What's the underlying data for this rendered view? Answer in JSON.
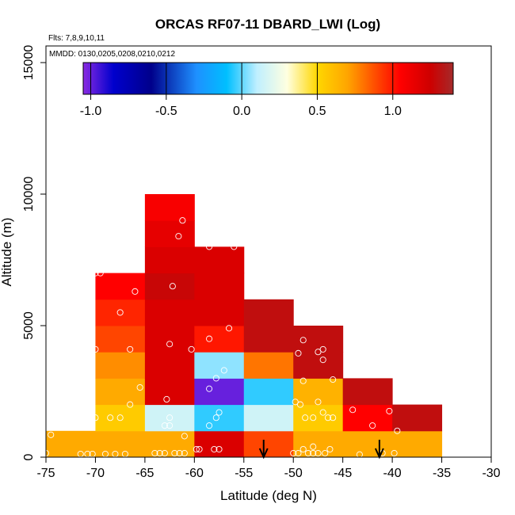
{
  "chart_data": {
    "type": "heatmap",
    "title": "ORCAS RF07-11 DBARD_LWI (Log)",
    "flights_note": "Flts: 7,8,9,10,11",
    "dates_note": "MMDD: 0130,0205,0208,0210,0212",
    "xlabel": "Latitude (deg N)",
    "ylabel": "Altitude (m)",
    "xlim": [
      -75,
      -30
    ],
    "ylim": [
      0,
      15000
    ],
    "x_ticks": [
      -75,
      -70,
      -65,
      -60,
      -55,
      -50,
      -45,
      -40,
      -35,
      -30
    ],
    "x_tick_labels": [
      "-75",
      "-70",
      "-65",
      "-60",
      "-55",
      "-50",
      "-45",
      "-40",
      "-35",
      "-30"
    ],
    "y_ticks": [
      0,
      5000,
      10000,
      15000
    ],
    "y_tick_labels": [
      "0",
      "5000",
      "10000",
      "15000"
    ],
    "colorbar": {
      "range": [
        -1.05,
        1.4
      ],
      "ticks": [
        -1.0,
        -0.5,
        0.0,
        0.5,
        1.0
      ],
      "tick_labels": [
        "-1.0",
        "-0.5",
        "0.0",
        "0.5",
        "1.0"
      ],
      "stops": [
        {
          "v": -1.05,
          "c": "#8a2be2"
        },
        {
          "v": -0.85,
          "c": "#0000cd"
        },
        {
          "v": -0.6,
          "c": "#00008b"
        },
        {
          "v": -0.3,
          "c": "#1e90ff"
        },
        {
          "v": -0.1,
          "c": "#00bfff"
        },
        {
          "v": 0.1,
          "c": "#bfefff"
        },
        {
          "v": 0.3,
          "c": "#ffffe0"
        },
        {
          "v": 0.5,
          "c": "#ffd700"
        },
        {
          "v": 0.7,
          "c": "#ffa500"
        },
        {
          "v": 0.9,
          "c": "#ff4500"
        },
        {
          "v": 1.05,
          "c": "#ff0000"
        },
        {
          "v": 1.25,
          "c": "#cd0000"
        },
        {
          "v": 1.4,
          "c": "#a52a2a"
        }
      ]
    },
    "cells": [
      {
        "lat": [
          -75,
          -70
        ],
        "alt": [
          0,
          1000
        ],
        "value": 0.68
      },
      {
        "lat": [
          -70,
          -65
        ],
        "alt": [
          0,
          1000
        ],
        "value": 0.68
      },
      {
        "lat": [
          -70,
          -65
        ],
        "alt": [
          1000,
          2000
        ],
        "value": 0.55
      },
      {
        "lat": [
          -70,
          -65
        ],
        "alt": [
          2000,
          3000
        ],
        "value": 0.68
      },
      {
        "lat": [
          -70,
          -65
        ],
        "alt": [
          3000,
          4000
        ],
        "value": 0.75
      },
      {
        "lat": [
          -70,
          -65
        ],
        "alt": [
          4000,
          5000
        ],
        "value": 0.9
      },
      {
        "lat": [
          -70,
          -65
        ],
        "alt": [
          5000,
          6000
        ],
        "value": 0.97
      },
      {
        "lat": [
          -70,
          -65
        ],
        "alt": [
          6000,
          7000
        ],
        "value": 1.05
      },
      {
        "lat": [
          -65,
          -60
        ],
        "alt": [
          0,
          1000
        ],
        "value": 0.68
      },
      {
        "lat": [
          -65,
          -60
        ],
        "alt": [
          1000,
          2000
        ],
        "value": 0.15
      },
      {
        "lat": [
          -65,
          -60
        ],
        "alt": [
          2000,
          3000
        ],
        "value": 1.2
      },
      {
        "lat": [
          -65,
          -60
        ],
        "alt": [
          3000,
          4000
        ],
        "value": 1.2
      },
      {
        "lat": [
          -65,
          -60
        ],
        "alt": [
          4000,
          5000
        ],
        "value": 1.2
      },
      {
        "lat": [
          -65,
          -60
        ],
        "alt": [
          5000,
          6000
        ],
        "value": 1.2
      },
      {
        "lat": [
          -65,
          -60
        ],
        "alt": [
          6000,
          7000
        ],
        "value": 1.27
      },
      {
        "lat": [
          -65,
          -60
        ],
        "alt": [
          7000,
          8000
        ],
        "value": 1.2
      },
      {
        "lat": [
          -65,
          -60
        ],
        "alt": [
          8000,
          9000
        ],
        "value": 1.15
      },
      {
        "lat": [
          -65,
          -60
        ],
        "alt": [
          9000,
          10000
        ],
        "value": 1.08
      },
      {
        "lat": [
          -60,
          -55
        ],
        "alt": [
          0,
          1000
        ],
        "value": 1.2
      },
      {
        "lat": [
          -60,
          -55
        ],
        "alt": [
          1000,
          2000
        ],
        "value": -0.05
      },
      {
        "lat": [
          -60,
          -55
        ],
        "alt": [
          2000,
          3000
        ],
        "value": -1.0
      },
      {
        "lat": [
          -60,
          -55
        ],
        "alt": [
          3000,
          4000
        ],
        "value": 0.05
      },
      {
        "lat": [
          -60,
          -55
        ],
        "alt": [
          4000,
          5000
        ],
        "value": 1.0
      },
      {
        "lat": [
          -60,
          -55
        ],
        "alt": [
          5000,
          6000
        ],
        "value": 1.2
      },
      {
        "lat": [
          -60,
          -55
        ],
        "alt": [
          6000,
          7000
        ],
        "value": 1.2
      },
      {
        "lat": [
          -60,
          -55
        ],
        "alt": [
          7000,
          8000
        ],
        "value": 1.2
      },
      {
        "lat": [
          -55,
          -50
        ],
        "alt": [
          0,
          1000
        ],
        "value": 0.9
      },
      {
        "lat": [
          -55,
          -50
        ],
        "alt": [
          1000,
          2000
        ],
        "value": 0.15
      },
      {
        "lat": [
          -55,
          -50
        ],
        "alt": [
          2000,
          3000
        ],
        "value": -0.05
      },
      {
        "lat": [
          -55,
          -50
        ],
        "alt": [
          3000,
          4000
        ],
        "value": 0.8
      },
      {
        "lat": [
          -55,
          -50
        ],
        "alt": [
          4000,
          5000
        ],
        "value": 1.3
      },
      {
        "lat": [
          -55,
          -50
        ],
        "alt": [
          5000,
          6000
        ],
        "value": 1.3
      },
      {
        "lat": [
          -50,
          -45
        ],
        "alt": [
          0,
          1000
        ],
        "value": 0.68
      },
      {
        "lat": [
          -50,
          -45
        ],
        "alt": [
          1000,
          2000
        ],
        "value": 0.55
      },
      {
        "lat": [
          -50,
          -45
        ],
        "alt": [
          2000,
          3000
        ],
        "value": 0.65
      },
      {
        "lat": [
          -50,
          -45
        ],
        "alt": [
          3000,
          4000
        ],
        "value": 1.3
      },
      {
        "lat": [
          -50,
          -45
        ],
        "alt": [
          4000,
          5000
        ],
        "value": 1.3
      },
      {
        "lat": [
          -45,
          -40
        ],
        "alt": [
          0,
          1000
        ],
        "value": 0.68
      },
      {
        "lat": [
          -45,
          -40
        ],
        "alt": [
          1000,
          2000
        ],
        "value": 1.05
      },
      {
        "lat": [
          -45,
          -40
        ],
        "alt": [
          2000,
          3000
        ],
        "value": 1.3
      },
      {
        "lat": [
          -40,
          -35
        ],
        "alt": [
          0,
          1000
        ],
        "value": 0.68
      },
      {
        "lat": [
          -40,
          -35
        ],
        "alt": [
          1000,
          2000
        ],
        "value": 1.3
      }
    ],
    "arrows_lat": [
      -53,
      -41.3
    ],
    "observations": [
      {
        "lat": -74.5,
        "alt": 850
      },
      {
        "lat": -75,
        "alt": 150
      },
      {
        "lat": -71.5,
        "alt": 120
      },
      {
        "lat": -70.8,
        "alt": 120
      },
      {
        "lat": -70.3,
        "alt": 120
      },
      {
        "lat": -69,
        "alt": 120
      },
      {
        "lat": -68,
        "alt": 120
      },
      {
        "lat": -67,
        "alt": 120
      },
      {
        "lat": -70,
        "alt": 1500
      },
      {
        "lat": -68.5,
        "alt": 1500
      },
      {
        "lat": -67.5,
        "alt": 1500
      },
      {
        "lat": -66.5,
        "alt": 2000
      },
      {
        "lat": -65.5,
        "alt": 2650
      },
      {
        "lat": -66.5,
        "alt": 4100
      },
      {
        "lat": -67.5,
        "alt": 5500
      },
      {
        "lat": -66,
        "alt": 6300
      },
      {
        "lat": -70,
        "alt": 4100
      },
      {
        "lat": -70,
        "alt": 7000
      },
      {
        "lat": -69.5,
        "alt": 7000
      },
      {
        "lat": -64,
        "alt": 150
      },
      {
        "lat": -63.5,
        "alt": 150
      },
      {
        "lat": -63,
        "alt": 150
      },
      {
        "lat": -62,
        "alt": 150
      },
      {
        "lat": -61.5,
        "alt": 150
      },
      {
        "lat": -61,
        "alt": 150
      },
      {
        "lat": -63,
        "alt": 1200
      },
      {
        "lat": -62.5,
        "alt": 1200
      },
      {
        "lat": -62.5,
        "alt": 1500
      },
      {
        "lat": -61,
        "alt": 800
      },
      {
        "lat": -62.8,
        "alt": 2200
      },
      {
        "lat": -60.3,
        "alt": 4100
      },
      {
        "lat": -62.5,
        "alt": 4300
      },
      {
        "lat": -62.2,
        "alt": 6500
      },
      {
        "lat": -61.6,
        "alt": 8400
      },
      {
        "lat": -61.2,
        "alt": 9000
      },
      {
        "lat": -58.5,
        "alt": 8000
      },
      {
        "lat": -56,
        "alt": 8000
      },
      {
        "lat": -59.8,
        "alt": 300
      },
      {
        "lat": -59.5,
        "alt": 300
      },
      {
        "lat": -58,
        "alt": 300
      },
      {
        "lat": -57.5,
        "alt": 300
      },
      {
        "lat": -58.5,
        "alt": 1200
      },
      {
        "lat": -57.8,
        "alt": 1500
      },
      {
        "lat": -57.5,
        "alt": 1700
      },
      {
        "lat": -58.5,
        "alt": 2600
      },
      {
        "lat": -57.8,
        "alt": 3000
      },
      {
        "lat": -57,
        "alt": 3300
      },
      {
        "lat": -58.5,
        "alt": 4500
      },
      {
        "lat": -56.5,
        "alt": 4900
      },
      {
        "lat": -50,
        "alt": 150
      },
      {
        "lat": -49.5,
        "alt": 150
      },
      {
        "lat": -48.5,
        "alt": 150
      },
      {
        "lat": -48,
        "alt": 150
      },
      {
        "lat": -47.5,
        "alt": 150
      },
      {
        "lat": -46.8,
        "alt": 150
      },
      {
        "lat": -46.3,
        "alt": 300
      },
      {
        "lat": -49,
        "alt": 300
      },
      {
        "lat": -48,
        "alt": 400
      },
      {
        "lat": -49.8,
        "alt": 2100
      },
      {
        "lat": -49.3,
        "alt": 2000
      },
      {
        "lat": -48.8,
        "alt": 1500
      },
      {
        "lat": -48,
        "alt": 1500
      },
      {
        "lat": -47.5,
        "alt": 2100
      },
      {
        "lat": -47,
        "alt": 1700
      },
      {
        "lat": -46.5,
        "alt": 1500
      },
      {
        "lat": -46,
        "alt": 1500
      },
      {
        "lat": -49,
        "alt": 2900
      },
      {
        "lat": -47,
        "alt": 3700
      },
      {
        "lat": -46,
        "alt": 2950
      },
      {
        "lat": -49.5,
        "alt": 3950
      },
      {
        "lat": -49,
        "alt": 4450
      },
      {
        "lat": -47.5,
        "alt": 4000
      },
      {
        "lat": -47,
        "alt": 4100
      },
      {
        "lat": -44,
        "alt": 1800
      },
      {
        "lat": -43.3,
        "alt": 100
      },
      {
        "lat": -42,
        "alt": 1200
      },
      {
        "lat": -40.3,
        "alt": 1750
      },
      {
        "lat": -39.5,
        "alt": 1000
      },
      {
        "lat": -39.8,
        "alt": 150
      },
      {
        "lat": -41,
        "alt": 150
      }
    ]
  }
}
